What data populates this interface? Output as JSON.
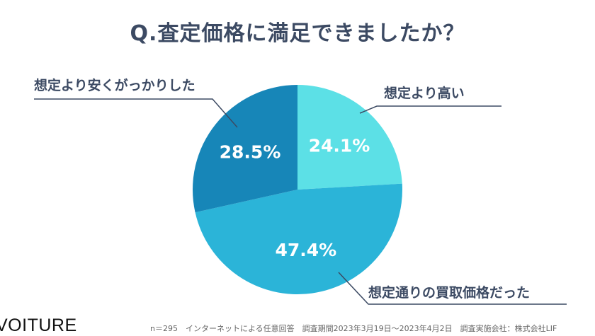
{
  "chart_data": {
    "type": "pie",
    "title": "Q.査定価格に満足できましたか？",
    "categories": [
      "想定より高い",
      "想定通りの買取価格だった",
      "想定より安くがっかりした"
    ],
    "values": [
      24.1,
      47.4,
      28.5
    ],
    "value_labels": [
      "24.1%",
      "47.4%",
      "28.5%"
    ],
    "colors": [
      "#5ce0e6",
      "#2bb4d8",
      "#1786b8"
    ],
    "start": "12 o'clock, clockwise"
  },
  "brand": "VOITURE",
  "note": "n＝295　インターネットによる任意回答　調査期間2023年3月19日〜2023年4月2日　調査実施会社：株式会社LIF"
}
